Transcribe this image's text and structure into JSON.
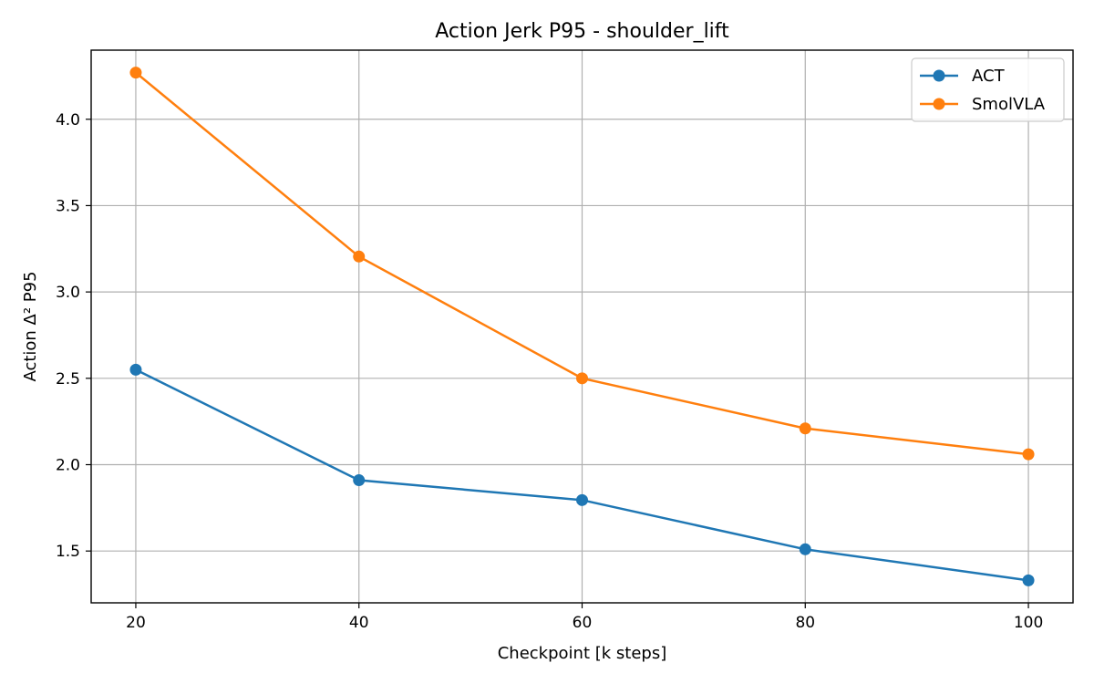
{
  "chart_data": {
    "type": "line",
    "title": "Action Jerk P95 - shoulder_lift",
    "xlabel": "Checkpoint [k steps]",
    "ylabel": "Action Δ² P95",
    "x": [
      20,
      40,
      60,
      80,
      100
    ],
    "xlim": [
      16,
      104
    ],
    "ylim": [
      1.2,
      4.4
    ],
    "xticks": [
      20,
      40,
      60,
      80,
      100
    ],
    "yticks": [
      1.5,
      2.0,
      2.5,
      3.0,
      3.5,
      4.0
    ],
    "ytick_labels": [
      "1.5",
      "2.0",
      "2.5",
      "3.0",
      "3.5",
      "4.0"
    ],
    "grid": true,
    "legend_position": "top-right",
    "series": [
      {
        "name": "ACT",
        "color": "#1f77b4",
        "values": [
          2.55,
          1.91,
          1.795,
          1.51,
          1.33
        ]
      },
      {
        "name": "SmolVLA",
        "color": "#ff7f0e",
        "values": [
          4.27,
          3.205,
          2.5,
          2.21,
          2.06
        ]
      }
    ]
  }
}
